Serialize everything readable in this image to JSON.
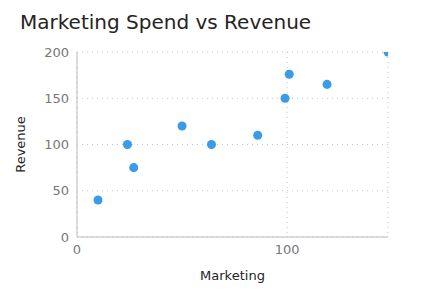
{
  "chart_data": {
    "type": "scatter",
    "title": "Marketing Spend vs Revenue",
    "x_label": "Marketing",
    "y_label": "Revenue",
    "x": [
      10,
      24,
      27,
      50,
      64,
      86,
      99,
      101,
      119,
      148
    ],
    "values": [
      40,
      100,
      75,
      120,
      100,
      110,
      150,
      176,
      165,
      200
    ],
    "color": "#3a9be8",
    "marker": "circle",
    "xlim": [
      0,
      148
    ],
    "xticks": [
      0,
      100
    ],
    "ylim": [
      0,
      200
    ],
    "yticks": [
      0,
      50,
      100,
      150,
      200
    ],
    "grid": true
  }
}
